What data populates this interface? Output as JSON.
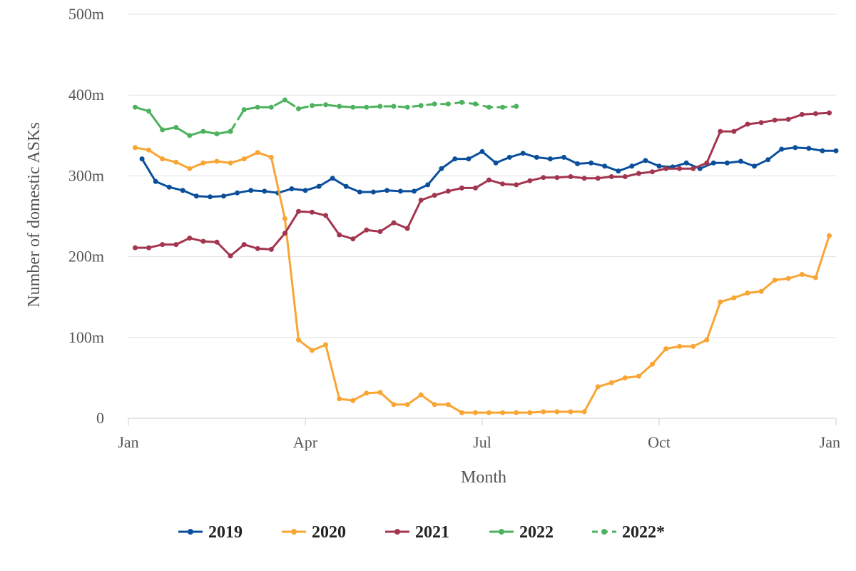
{
  "chart_data": {
    "type": "line",
    "xlabel": "Month",
    "ylabel": "Number of domestic ASKs",
    "ylim": [
      0,
      500
    ],
    "xlim": [
      0,
      52
    ],
    "y_ticks": [
      {
        "value": 0,
        "label": "0"
      },
      {
        "value": 100,
        "label": "100m"
      },
      {
        "value": 200,
        "label": "200m"
      },
      {
        "value": 300,
        "label": "300m"
      },
      {
        "value": 400,
        "label": "400m"
      },
      {
        "value": 500,
        "label": "500m"
      }
    ],
    "x_ticks": [
      {
        "value": 0,
        "label": "Jan"
      },
      {
        "value": 13,
        "label": "Apr"
      },
      {
        "value": 26,
        "label": "Jul"
      },
      {
        "value": 39,
        "label": "Oct"
      },
      {
        "value": 52,
        "label": "Jan"
      }
    ],
    "grid": "horizontal",
    "legend_position": "bottom",
    "series": [
      {
        "name": "2019",
        "color": "#0b4f9c",
        "dashed": false,
        "x": [
          1,
          2,
          3,
          4,
          5,
          6,
          7,
          8,
          9,
          10,
          11,
          12,
          13,
          14,
          15,
          16,
          17,
          18,
          19,
          20,
          21,
          22,
          23,
          24,
          25,
          26,
          27,
          28,
          29,
          30,
          31,
          32,
          33,
          34,
          35,
          36,
          37,
          38,
          39,
          40,
          41,
          42,
          43,
          44,
          45,
          46,
          47,
          48,
          49,
          50,
          51,
          52
        ],
        "values": [
          321,
          293,
          286,
          282,
          275,
          274,
          275,
          279,
          282,
          281,
          279,
          284,
          282,
          287,
          297,
          287,
          280,
          280,
          282,
          281,
          281,
          289,
          309,
          321,
          321,
          330,
          316,
          323,
          328,
          323,
          321,
          323,
          315,
          316,
          312,
          306,
          312,
          319,
          312,
          311,
          316,
          309,
          316,
          316,
          318,
          312,
          320,
          333,
          335,
          334,
          331,
          331
        ]
      },
      {
        "name": "2020",
        "color": "#f8a534",
        "dashed": false,
        "x": [
          0.5,
          1.5,
          2.5,
          3.5,
          4.5,
          5.5,
          6.5,
          7.5,
          8.5,
          9.5,
          10.5,
          11.5,
          12.5,
          13.5,
          14.5,
          15.5,
          16.5,
          17.5,
          18.5,
          19.5,
          20.5,
          21.5,
          22.5,
          23.5,
          24.5,
          25.5,
          26.5,
          27.5,
          28.5,
          29.5,
          30.5,
          31.5,
          32.5,
          33.5,
          34.5,
          35.5,
          36.5,
          37.5,
          38.5,
          39.5,
          40.5,
          41.5,
          42.5,
          43.5,
          44.5,
          45.5,
          46.5,
          47.5,
          48.5,
          49.5,
          50.5,
          51.5
        ],
        "values": [
          335,
          332,
          321,
          317,
          309,
          316,
          318,
          316,
          321,
          329,
          323,
          247,
          97,
          84,
          91,
          24,
          22,
          31,
          32,
          17,
          17,
          29,
          17,
          17,
          7,
          7,
          7,
          7,
          7,
          7,
          8,
          8,
          8,
          8,
          39,
          44,
          50,
          52,
          67,
          86,
          89,
          89,
          97,
          144,
          149,
          155,
          157,
          171,
          173,
          178,
          174,
          226
        ]
      },
      {
        "name": "2021",
        "color": "#a3364f",
        "dashed": false,
        "x": [
          0.5,
          1.5,
          2.5,
          3.5,
          4.5,
          5.5,
          6.5,
          7.5,
          8.5,
          9.5,
          10.5,
          11.5,
          12.5,
          13.5,
          14.5,
          15.5,
          16.5,
          17.5,
          18.5,
          19.5,
          20.5,
          21.5,
          22.5,
          23.5,
          24.5,
          25.5,
          26.5,
          27.5,
          28.5,
          29.5,
          30.5,
          31.5,
          32.5,
          33.5,
          34.5,
          35.5,
          36.5,
          37.5,
          38.5,
          39.5,
          40.5,
          41.5,
          42.5,
          43.5,
          44.5,
          45.5,
          46.5,
          47.5,
          48.5,
          49.5,
          50.5,
          51.5
        ],
        "values": [
          211,
          211,
          215,
          215,
          223,
          219,
          218,
          201,
          215,
          210,
          209,
          229,
          256,
          255,
          251,
          227,
          222,
          233,
          231,
          242,
          235,
          270,
          276,
          281,
          285,
          285,
          295,
          290,
          289,
          294,
          298,
          298,
          299,
          297,
          297,
          299,
          299,
          303,
          305,
          309,
          309,
          309,
          316,
          355,
          355,
          364,
          366,
          369,
          370,
          376,
          377,
          378
        ]
      },
      {
        "name": "2022",
        "color": "#4db25d",
        "dashed": false,
        "x": [
          0.5,
          1.5,
          2.5,
          3.5,
          4.5,
          5.5,
          6.5,
          7.5
        ],
        "values": [
          385,
          380,
          357,
          360,
          350,
          355,
          352,
          355
        ]
      },
      {
        "name": "2022*",
        "color": "#4db25d",
        "dashed": true,
        "x": [
          7.5,
          8.5,
          9.5,
          10.5,
          11.5,
          12.5,
          13.5,
          14.5,
          15.5,
          16.5,
          17.5,
          18.5,
          19.5,
          20.5,
          21.5,
          22.5,
          23.5,
          24.5,
          25.5,
          26.5,
          27.5,
          28.5
        ],
        "values": [
          355,
          382,
          385,
          385,
          394,
          383,
          387,
          388,
          386,
          385,
          385,
          386,
          386,
          385,
          387,
          389,
          389,
          391,
          389,
          385,
          385,
          386
        ]
      }
    ]
  }
}
